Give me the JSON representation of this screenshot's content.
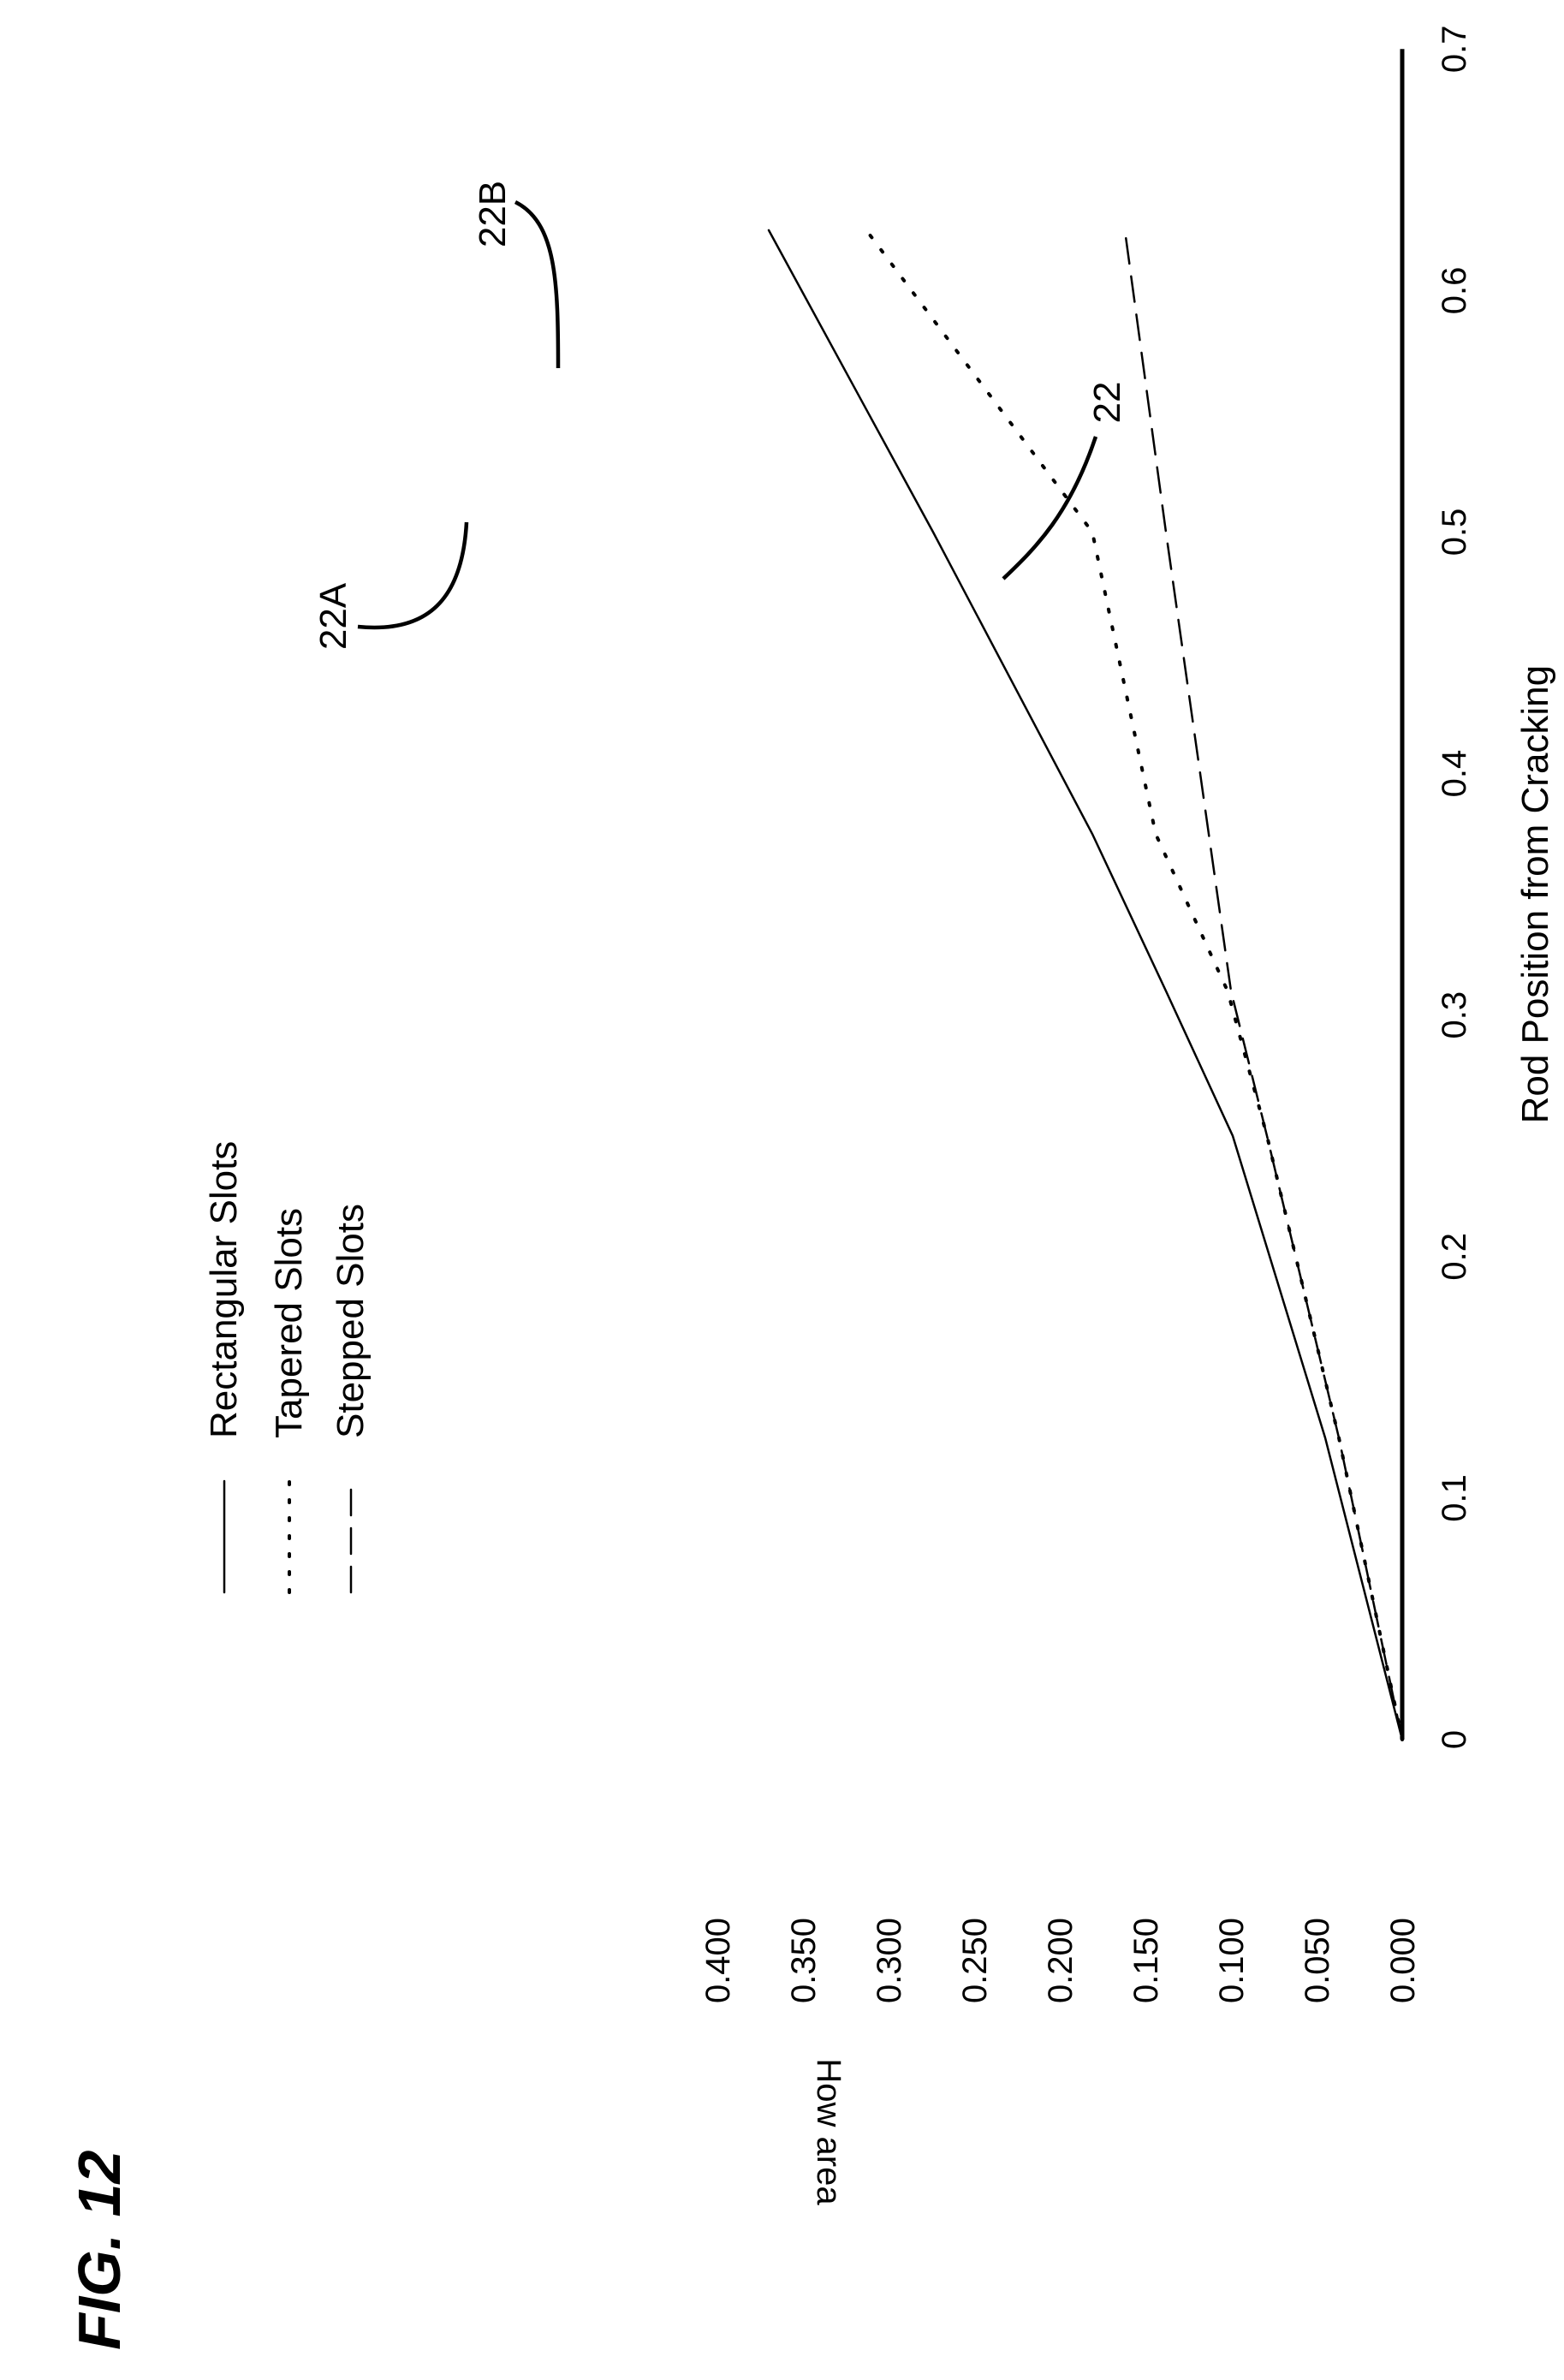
{
  "figure_label": "FIG. 12",
  "chart_data": {
    "type": "line",
    "title": "",
    "xlabel": "Rod Position from Cracking",
    "ylabel": "How area",
    "xlim": [
      0,
      0.7
    ],
    "ylim": [
      0,
      0.4
    ],
    "x_ticks": [
      "0",
      "0.1",
      "0.2",
      "0.3",
      "0.4",
      "0.5",
      "0.6",
      "0.7"
    ],
    "y_ticks": [
      "0.000",
      "0.050",
      "0.100",
      "0.150",
      "0.200",
      "0.250",
      "0.300",
      "0.350",
      "0.400"
    ],
    "grid": false,
    "legend_position": "top-left",
    "orientation": "rotated 90 degrees clockwise on the page",
    "series": [
      {
        "name": "Rectangular Slots",
        "style": "solid",
        "x": [
          0,
          0.125,
          0.25,
          0.31,
          0.375,
          0.5,
          0.625
        ],
        "y": [
          0,
          0.045,
          0.099,
          0.138,
          0.181,
          0.274,
          0.37
        ]
      },
      {
        "name": "Tapered Slots",
        "style": "dotted",
        "x": [
          0,
          0.125,
          0.25,
          0.31,
          0.375,
          0.5,
          0.625
        ],
        "y": [
          0,
          0.037,
          0.079,
          0.102,
          0.144,
          0.181,
          0.313
        ]
      },
      {
        "name": "Stepped Slots",
        "style": "dashed",
        "x": [
          0,
          0.125,
          0.25,
          0.31,
          0.375,
          0.5,
          0.625
        ],
        "y": [
          0,
          0.037,
          0.079,
          0.1,
          0.113,
          0.138,
          0.162
        ]
      }
    ],
    "annotations": [
      {
        "label": "22A",
        "x": 0.5,
        "y": 0.274
      },
      {
        "label": "22B",
        "x": 0.56,
        "y": 0.25
      },
      {
        "label": "22",
        "x": 0.48,
        "y": 0.135
      }
    ]
  }
}
